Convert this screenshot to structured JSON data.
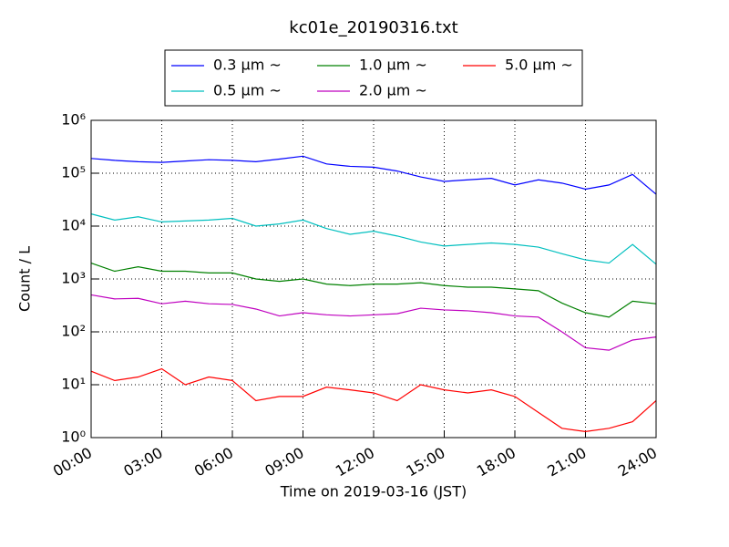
{
  "chart_data": {
    "type": "line",
    "title": "kc01e_20190316.txt",
    "x_label": "Time on 2019-03-16 (JST)",
    "y_label": "Count / L",
    "yscale": "log",
    "grid": true,
    "legend": "top",
    "xlim": [
      0,
      24
    ],
    "xticks": [
      {
        "value": 0,
        "label": "00:00"
      },
      {
        "value": 3,
        "label": "03:00"
      },
      {
        "value": 6,
        "label": "06:00"
      },
      {
        "value": 9,
        "label": "09:00"
      },
      {
        "value": 12,
        "label": "12:00"
      },
      {
        "value": 15,
        "label": "15:00"
      },
      {
        "value": 18,
        "label": "18:00"
      },
      {
        "value": 21,
        "label": "21:00"
      },
      {
        "value": 24,
        "label": "24:00"
      }
    ],
    "ylim": [
      1,
      1000000
    ],
    "yticks": [
      {
        "value": 1,
        "label": "10⁰"
      },
      {
        "value": 10,
        "label": "10¹"
      },
      {
        "value": 100,
        "label": "10²"
      },
      {
        "value": 1000,
        "label": "10³"
      },
      {
        "value": 10000,
        "label": "10⁴"
      },
      {
        "value": 100000,
        "label": "10⁵"
      },
      {
        "value": 1000000,
        "label": "10⁶"
      }
    ],
    "x": [
      0,
      1,
      2,
      3,
      4,
      5,
      6,
      7,
      8,
      9,
      10,
      11,
      12,
      13,
      14,
      15,
      16,
      17,
      18,
      19,
      20,
      21,
      22,
      23,
      24
    ],
    "series": [
      {
        "name": "0.3 μm ~",
        "color": "#0000ff",
        "values": [
          190000,
          175000,
          165000,
          160000,
          170000,
          180000,
          175000,
          165000,
          185000,
          210000,
          150000,
          135000,
          130000,
          110000,
          85000,
          70000,
          75000,
          80000,
          60000,
          75000,
          65000,
          50000,
          60000,
          95000,
          40000
        ]
      },
      {
        "name": "0.5 μm ~",
        "color": "#00bfbf",
        "values": [
          17000,
          13000,
          15000,
          12000,
          12500,
          13000,
          14000,
          10000,
          11000,
          13000,
          9000,
          7000,
          8000,
          6500,
          5000,
          4200,
          4500,
          4800,
          4500,
          4000,
          3000,
          2300,
          2000,
          4500,
          1900
        ]
      },
      {
        "name": "1.0 μm ~",
        "color": "#008000",
        "values": [
          2000,
          1400,
          1700,
          1400,
          1400,
          1300,
          1300,
          1000,
          900,
          1000,
          800,
          750,
          800,
          800,
          850,
          750,
          700,
          700,
          650,
          600,
          350,
          230,
          190,
          380,
          340
        ]
      },
      {
        "name": "2.0 μm ~",
        "color": "#bf00bf",
        "values": [
          500,
          420,
          430,
          340,
          380,
          340,
          330,
          270,
          200,
          230,
          210,
          200,
          210,
          220,
          280,
          260,
          250,
          230,
          200,
          190,
          100,
          50,
          45,
          70,
          80
        ]
      },
      {
        "name": "5.0 μm ~",
        "color": "#ff0000",
        "values": [
          18,
          12,
          14,
          20,
          10,
          14,
          12,
          5,
          6,
          6,
          9,
          8,
          7,
          5,
          10,
          8,
          7,
          8,
          6,
          3,
          1.5,
          1.3,
          1.5,
          2,
          5
        ]
      }
    ]
  }
}
